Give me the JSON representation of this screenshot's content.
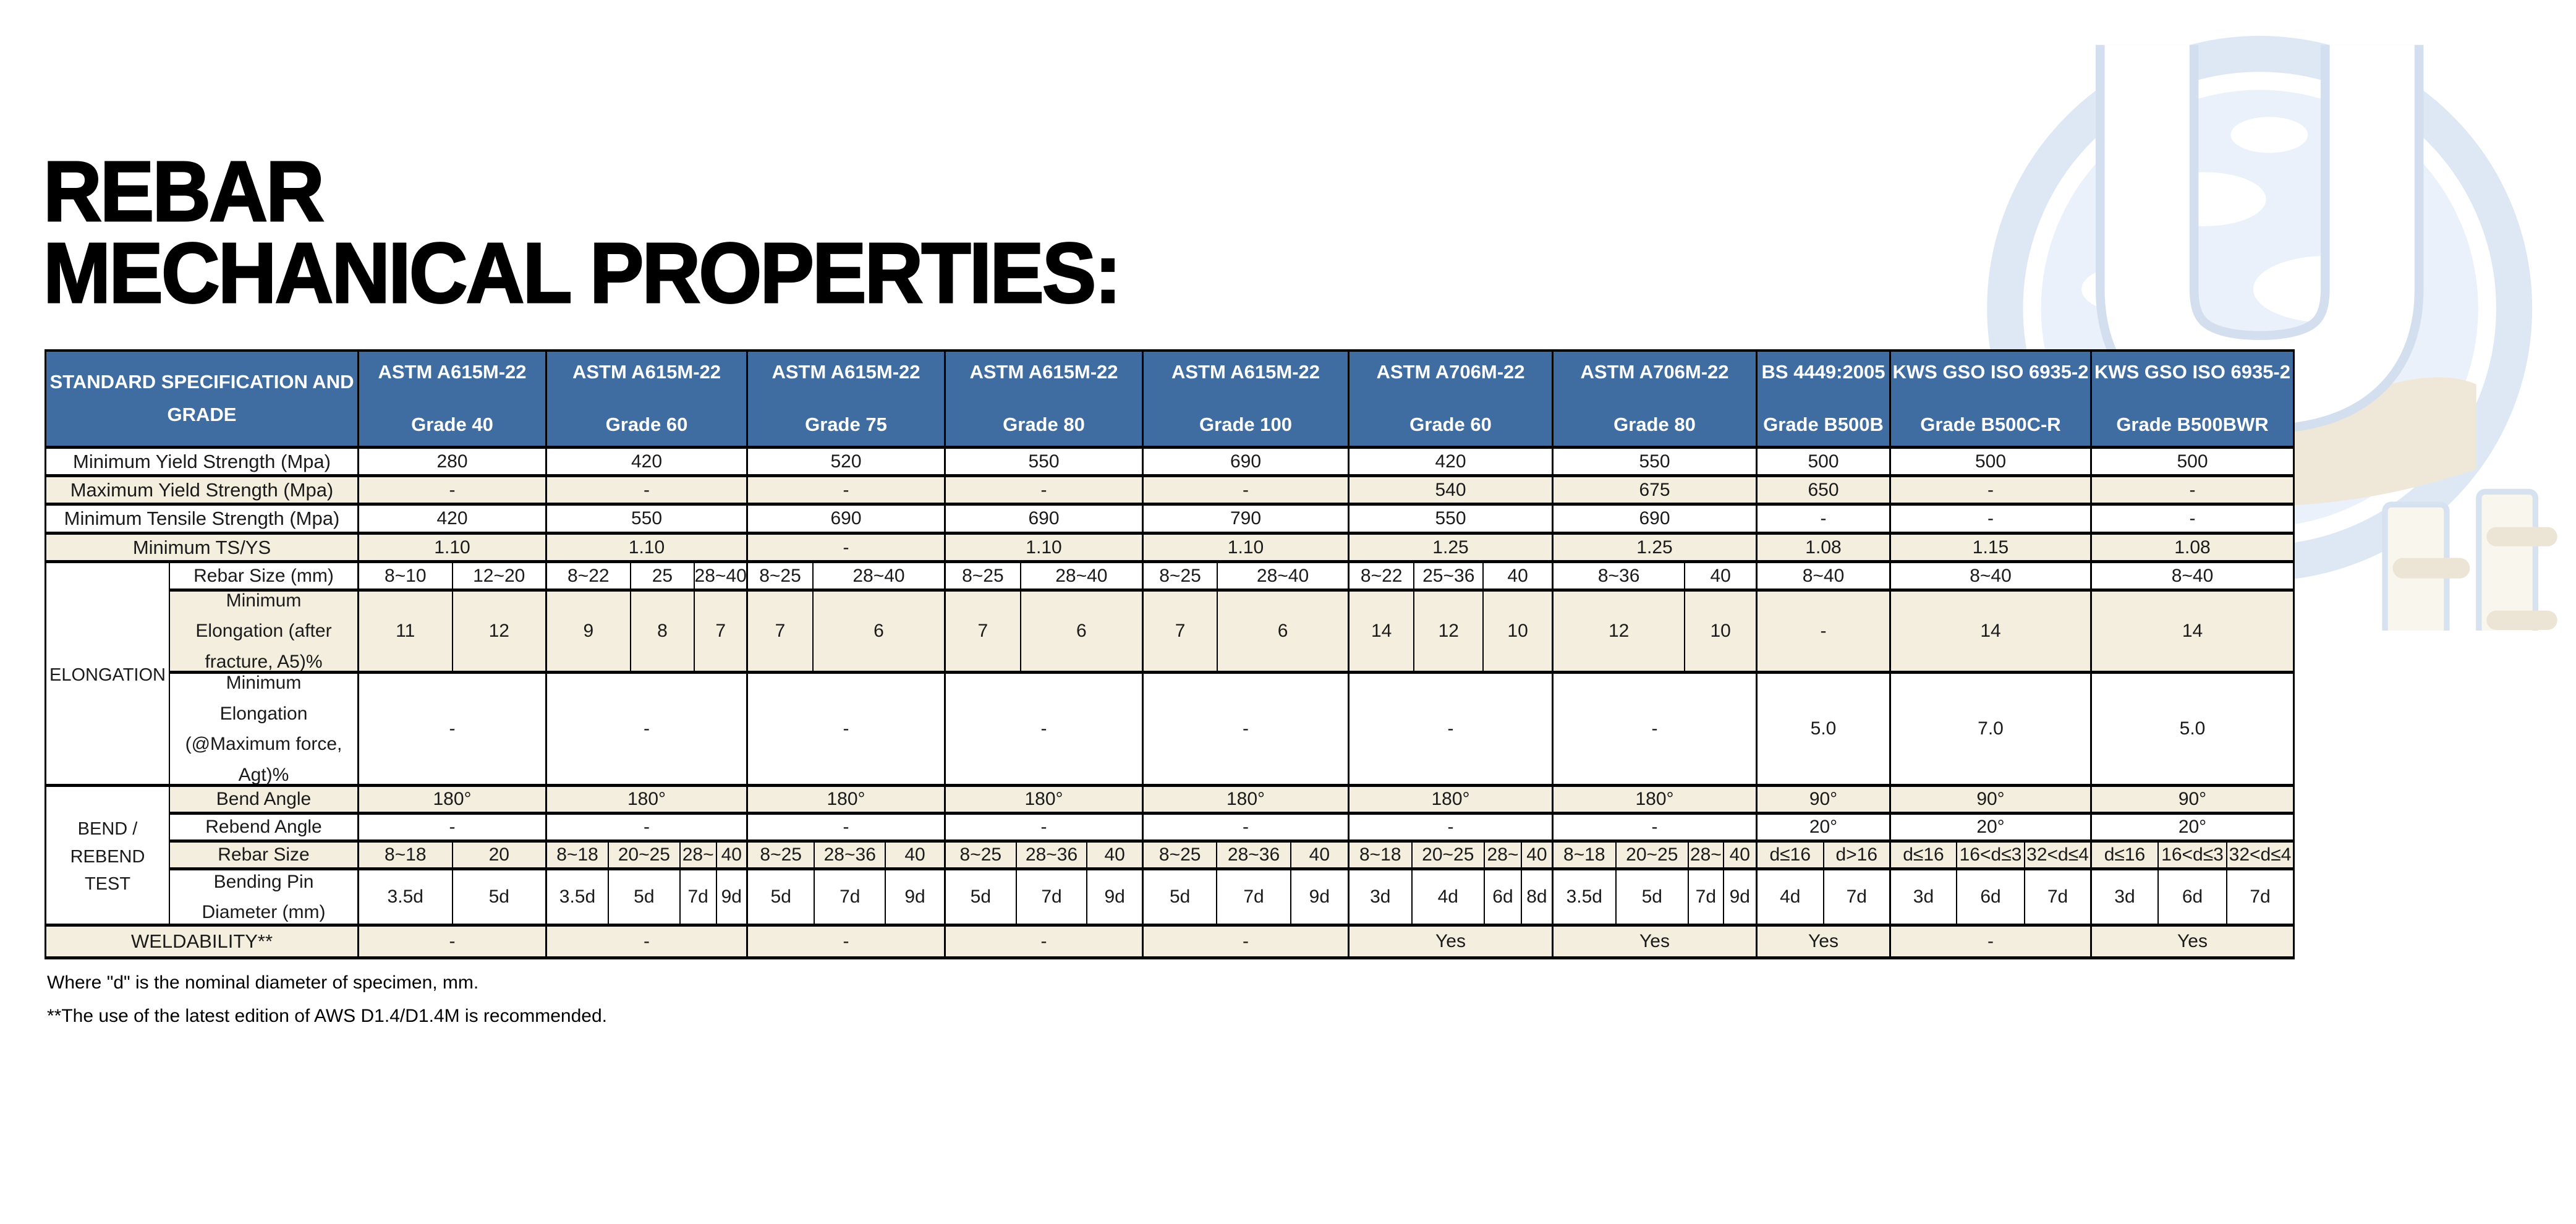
{
  "title": {
    "line1": "REBAR",
    "line2": "MECHANICAL PROPERTIES:"
  },
  "table": {
    "header_label": "STANDARD SPECIFICATION AND\nGRADE",
    "specs": [
      {
        "name": "ASTM A615M-22",
        "grade": "Grade 40"
      },
      {
        "name": "ASTM A615M-22",
        "grade": "Grade 60"
      },
      {
        "name": "ASTM A615M-22",
        "grade": "Grade 75"
      },
      {
        "name": "ASTM A615M-22",
        "grade": "Grade 80"
      },
      {
        "name": "ASTM A615M-22",
        "grade": "Grade 100"
      },
      {
        "name": "ASTM A706M-22",
        "grade": "Grade 60"
      },
      {
        "name": "ASTM A706M-22",
        "grade": "Grade 80"
      },
      {
        "name": "BS 4449:2005",
        "grade": "Grade B500B"
      },
      {
        "name": "KWS GSO ISO 6935-2",
        "grade": "Grade B500C-R"
      },
      {
        "name": "KWS GSO ISO 6935-2",
        "grade": "Grade B500BWR"
      }
    ],
    "groups": {
      "elongation": "ELONGATION",
      "bend": "BEND /\nREBEND TEST"
    },
    "rows": {
      "min_yield": {
        "label": "Minimum Yield Strength (Mpa)",
        "values": [
          "280",
          "420",
          "520",
          "550",
          "690",
          "420",
          "550",
          "500",
          "500",
          "500"
        ]
      },
      "max_yield": {
        "label": "Maximum Yield Strength (Mpa)",
        "values": [
          "-",
          "-",
          "-",
          "-",
          "-",
          "540",
          "675",
          "650",
          "-",
          "-"
        ]
      },
      "min_tensile": {
        "label": "Minimum Tensile Strength (Mpa)",
        "values": [
          "420",
          "550",
          "690",
          "690",
          "790",
          "550",
          "690",
          "-",
          "-",
          "-"
        ]
      },
      "ts_ys": {
        "label": "Minimum TS/YS",
        "values": [
          "1.10",
          "1.10",
          "-",
          "1.10",
          "1.10",
          "1.25",
          "1.25",
          "1.08",
          "1.15",
          "1.08"
        ]
      },
      "rebar_size_mm": {
        "label": "Rebar Size (mm)",
        "cells": [
          [
            "8~10",
            "12~20"
          ],
          [
            "8~22",
            "25",
            "28~40"
          ],
          [
            "8~25",
            "28~40"
          ],
          [
            "8~25",
            "28~40"
          ],
          [
            "8~25",
            "28~40"
          ],
          [
            "8~22",
            "25~36",
            "40"
          ],
          [
            "8~36",
            "40"
          ],
          [
            "8~40"
          ],
          [
            "8~40"
          ],
          [
            "8~40"
          ]
        ]
      },
      "a5": {
        "label": "Minimum\nElongation (after\nfracture, A5)%",
        "cells": [
          [
            "11",
            "12"
          ],
          [
            "9",
            "8",
            "7"
          ],
          [
            "7",
            "6"
          ],
          [
            "7",
            "6"
          ],
          [
            "7",
            "6"
          ],
          [
            "14",
            "12",
            "10"
          ],
          [
            "12",
            "10"
          ],
          [
            "-"
          ],
          [
            "14"
          ],
          [
            "14"
          ]
        ]
      },
      "agt": {
        "label": "Minimum\nElongation\n(@Maximum force,\nAgt)%",
        "values": [
          "-",
          "-",
          "-",
          "-",
          "-",
          "-",
          "-",
          "5.0",
          "7.0",
          "5.0"
        ]
      },
      "bend_angle": {
        "label": "Bend Angle",
        "values": [
          "180°",
          "180°",
          "180°",
          "180°",
          "180°",
          "180°",
          "180°",
          "90°",
          "90°",
          "90°"
        ]
      },
      "rebend_angle": {
        "label": "Rebend Angle",
        "values": [
          "-",
          "-",
          "-",
          "-",
          "-",
          "-",
          "-",
          "20°",
          "20°",
          "20°"
        ]
      },
      "bend_rebar_size": {
        "label": "Rebar Size",
        "cells": [
          [
            "8~18",
            "20"
          ],
          [
            "8~18",
            "20~25",
            "28~",
            "40"
          ],
          [
            "8~25",
            "28~36",
            "40"
          ],
          [
            "8~25",
            "28~36",
            "40"
          ],
          [
            "8~25",
            "28~36",
            "40"
          ],
          [
            "8~18",
            "20~25",
            "28~",
            "40"
          ],
          [
            "8~18",
            "20~25",
            "28~",
            "40"
          ],
          [
            "d≤16",
            "d>16"
          ],
          [
            "d≤16",
            "16<d≤3",
            "32<d≤4"
          ],
          [
            "d≤16",
            "16<d≤3",
            "32<d≤4"
          ]
        ]
      },
      "pin": {
        "label": "Bending Pin\nDiameter (mm)",
        "cells": [
          [
            "3.5d",
            "5d"
          ],
          [
            "3.5d",
            "5d",
            "7d",
            "9d"
          ],
          [
            "5d",
            "7d",
            "9d"
          ],
          [
            "5d",
            "7d",
            "9d"
          ],
          [
            "5d",
            "7d",
            "9d"
          ],
          [
            "3d",
            "4d",
            "6d",
            "8d"
          ],
          [
            "3.5d",
            "5d",
            "7d",
            "9d"
          ],
          [
            "4d",
            "7d"
          ],
          [
            "3d",
            "6d",
            "7d"
          ],
          [
            "3d",
            "6d",
            "7d"
          ]
        ]
      },
      "weld": {
        "label": "WELDABILITY**",
        "values": [
          "-",
          "-",
          "-",
          "-",
          "-",
          "Yes",
          "Yes",
          "Yes",
          "-",
          "Yes"
        ]
      }
    }
  },
  "footnotes": [
    "Where \"d\" is the nominal diameter of specimen, mm.",
    "**The use of the latest edition of AWS D1.4/D1.4M is recommended."
  ],
  "colors": {
    "header_bg": "#3f6da1",
    "stripe_cream": "#f3eedd",
    "border": "#000000"
  }
}
